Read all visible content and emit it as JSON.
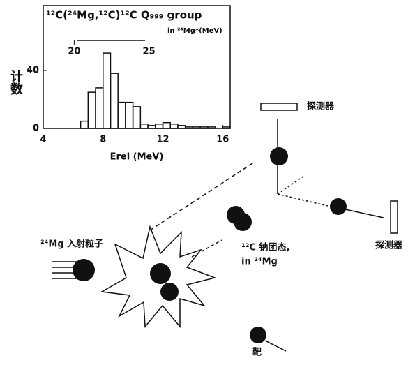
{
  "chart_data": {
    "type": "histogram",
    "title": "¹²C(²⁴Mg,¹²C)¹²C Q₉₉₉ group",
    "subtitle": "in ²⁴Mg*(MeV)",
    "xlabel": "Erel (MeV)",
    "ylabel": "计数",
    "bins": [
      6.5,
      7,
      7.5,
      8,
      8.5,
      9,
      9.5,
      10,
      10.5,
      11,
      11.5,
      12,
      12.5,
      13,
      13.5,
      14,
      14.5,
      15,
      15.5,
      16,
      16.5
    ],
    "values": [
      5,
      25,
      28,
      52,
      38,
      18,
      18,
      15,
      3,
      2,
      3,
      4,
      3,
      2,
      1,
      1,
      1,
      1,
      0,
      1
    ],
    "color": "#111",
    "xlim": [
      4,
      16.5
    ],
    "xticks": [
      4,
      8,
      12,
      16
    ],
    "ylim": [
      0,
      80
    ],
    "yticks": [
      0,
      40
    ],
    "x2lim": [
      17.93,
      30.43
    ],
    "x2ticks": [
      20,
      25
    ]
  },
  "diagram": {
    "detector_top": "探测器",
    "detector_right": "探测器",
    "projectile": "²⁴Mg 入射粒子",
    "cluster_line1": "¹²C 钠团态,",
    "cluster_line2": "in ²⁴Mg",
    "target": "靶"
  }
}
